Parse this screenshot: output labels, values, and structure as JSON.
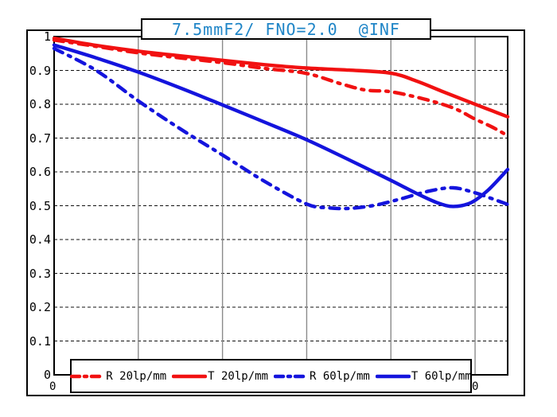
{
  "title": {
    "text": "7.5mmF2/ FNO=2.0  @INF",
    "color": "#1f85c7"
  },
  "colors": {
    "red_series": "#f11111",
    "blue_series": "#1414dd",
    "title_blue": "#1f85c7",
    "v_gridline_gray": "#8a8a8a",
    "h_gridline_black": "#111111",
    "frame_black": "#000000",
    "background": "#ffffff"
  },
  "chart_data": {
    "type": "line",
    "title": "7.5mmF2/ FNO=2.0  @INF",
    "xlabel": "",
    "ylabel": "",
    "grid": true,
    "legend_position": "bottom",
    "x_axis": {
      "min": 0,
      "max": 5.387,
      "gridlines_at": [
        1,
        2,
        3,
        4,
        5
      ],
      "visible_labels": [
        {
          "text": "0",
          "u": 0
        },
        {
          "text": "0",
          "u": 5
        }
      ]
    },
    "y_axis": {
      "min": 0,
      "max": 1,
      "ticks": [
        {
          "label": "1",
          "value": 1.0
        },
        {
          "label": "0.9",
          "value": 0.9
        },
        {
          "label": "0.8",
          "value": 0.8
        },
        {
          "label": "0.7",
          "value": 0.7
        },
        {
          "label": "0.6",
          "value": 0.6
        },
        {
          "label": "0.5",
          "value": 0.5
        },
        {
          "label": "0.4",
          "value": 0.4
        },
        {
          "label": "0.3",
          "value": 0.3
        },
        {
          "label": "0.2",
          "value": 0.2
        },
        {
          "label": "0.1",
          "value": 0.1
        },
        {
          "label": "0",
          "value": 0.0
        }
      ]
    },
    "series": [
      {
        "name": "R 20lp/mm",
        "style": "dashed",
        "color": "#f11111",
        "points": [
          [
            0,
            0.99
          ],
          [
            0.5,
            0.971
          ],
          [
            1,
            0.952
          ],
          [
            1.5,
            0.937
          ],
          [
            2,
            0.923
          ],
          [
            2.5,
            0.906
          ],
          [
            3,
            0.891
          ],
          [
            3.4,
            0.861
          ],
          [
            3.7,
            0.842
          ],
          [
            4,
            0.837
          ],
          [
            4.4,
            0.815
          ],
          [
            4.75,
            0.788
          ],
          [
            5,
            0.756
          ],
          [
            5.2,
            0.733
          ],
          [
            5.387,
            0.707
          ]
        ]
      },
      {
        "name": "T 20lp/mm",
        "style": "solid",
        "color": "#f11111",
        "points": [
          [
            0,
            0.995
          ],
          [
            0.5,
            0.974
          ],
          [
            1,
            0.957
          ],
          [
            1.5,
            0.943
          ],
          [
            2,
            0.93
          ],
          [
            2.5,
            0.917
          ],
          [
            3,
            0.907
          ],
          [
            3.5,
            0.901
          ],
          [
            4,
            0.892
          ],
          [
            4.3,
            0.869
          ],
          [
            4.6,
            0.839
          ],
          [
            5,
            0.8
          ],
          [
            5.2,
            0.781
          ],
          [
            5.387,
            0.763
          ]
        ]
      },
      {
        "name": "R 60lp/mm",
        "style": "dashed",
        "color": "#1414dd",
        "points": [
          [
            0,
            0.965
          ],
          [
            0.5,
            0.9
          ],
          [
            1,
            0.81
          ],
          [
            1.5,
            0.727
          ],
          [
            2,
            0.65
          ],
          [
            2.5,
            0.572
          ],
          [
            3,
            0.505
          ],
          [
            3.25,
            0.494
          ],
          [
            3.5,
            0.492
          ],
          [
            3.8,
            0.501
          ],
          [
            4.1,
            0.519
          ],
          [
            4.45,
            0.543
          ],
          [
            4.74,
            0.553
          ],
          [
            5,
            0.538
          ],
          [
            5.2,
            0.521
          ],
          [
            5.387,
            0.504
          ]
        ]
      },
      {
        "name": "T 60lp/mm",
        "style": "solid",
        "color": "#1414dd",
        "points": [
          [
            0,
            0.975
          ],
          [
            0.5,
            0.937
          ],
          [
            1,
            0.895
          ],
          [
            1.5,
            0.848
          ],
          [
            2,
            0.798
          ],
          [
            2.5,
            0.747
          ],
          [
            3,
            0.695
          ],
          [
            3.5,
            0.636
          ],
          [
            4,
            0.575
          ],
          [
            4.3,
            0.537
          ],
          [
            4.55,
            0.509
          ],
          [
            4.74,
            0.498
          ],
          [
            4.95,
            0.509
          ],
          [
            5.15,
            0.545
          ],
          [
            5.387,
            0.607
          ]
        ]
      }
    ]
  }
}
